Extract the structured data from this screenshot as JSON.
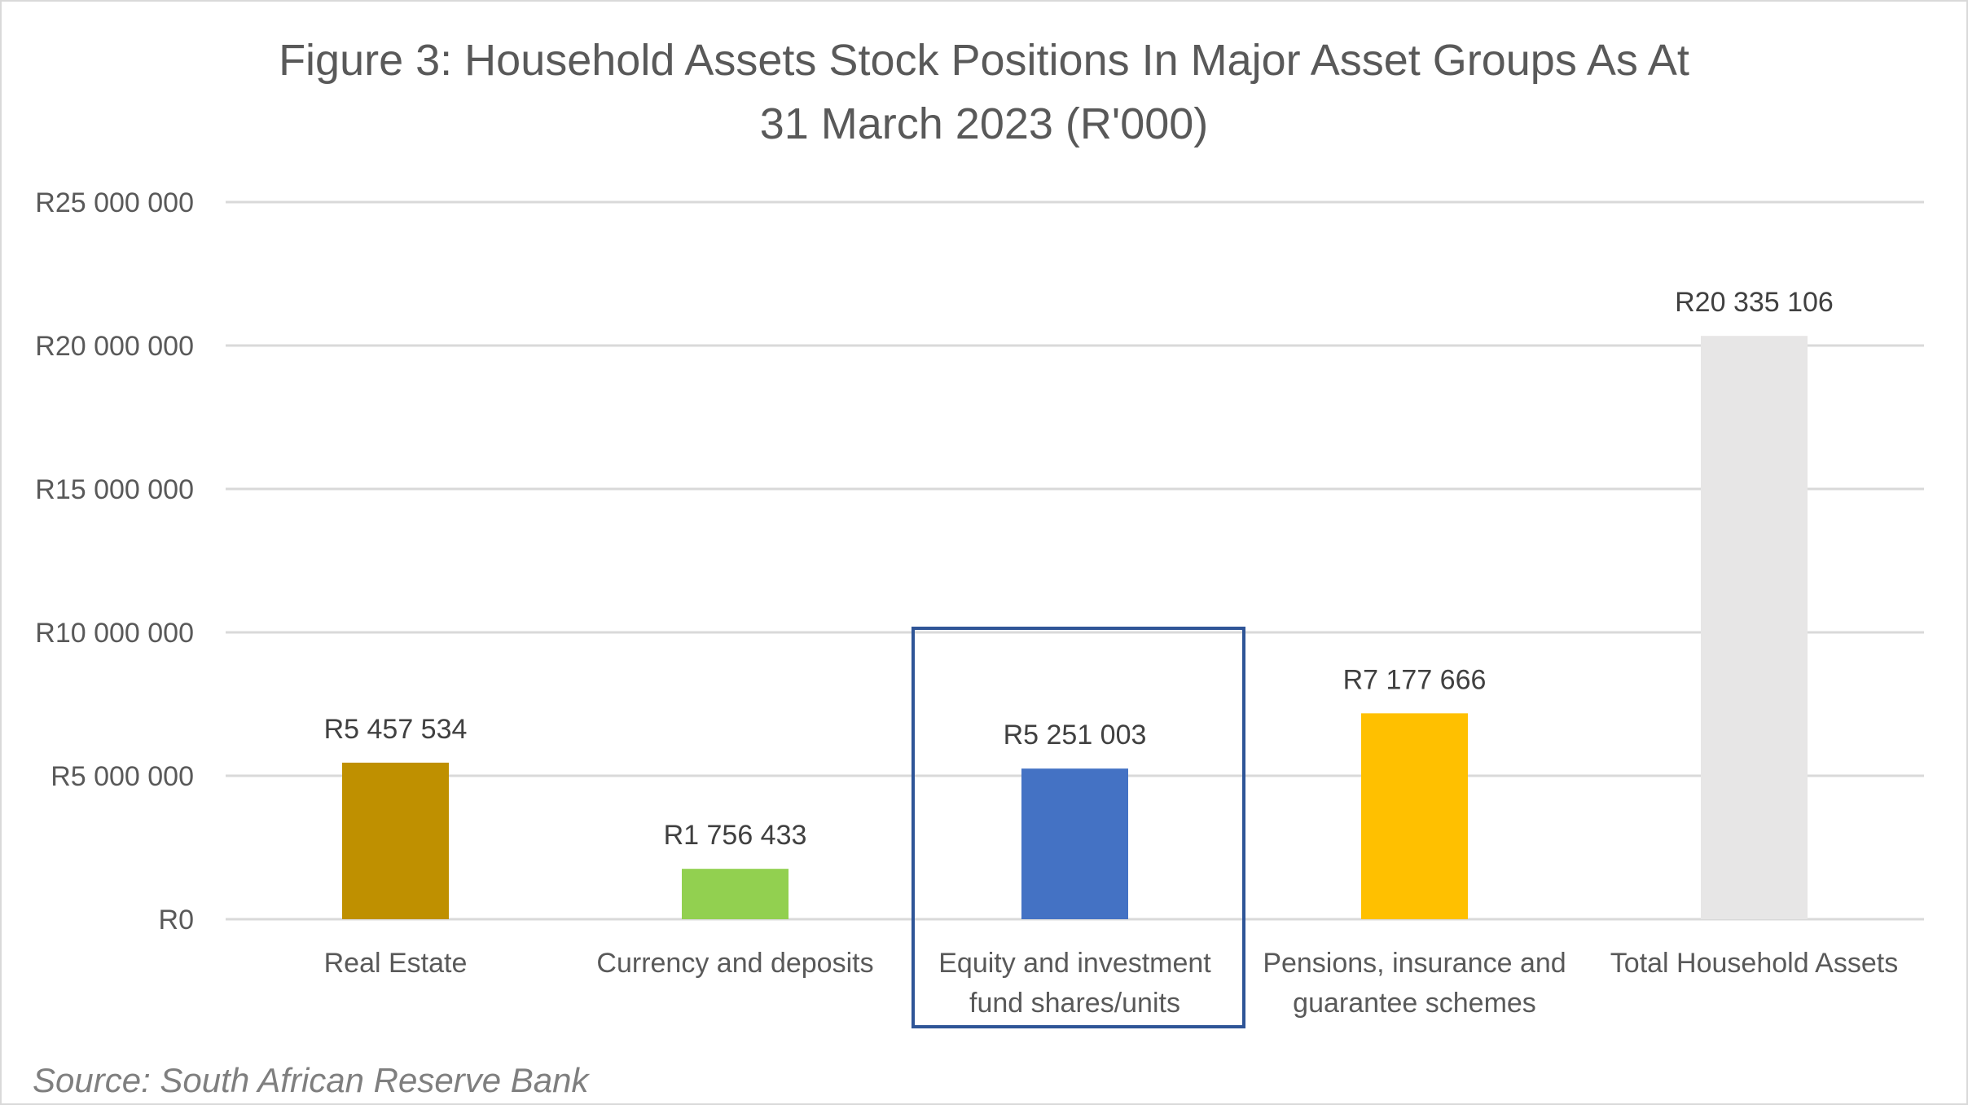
{
  "chart_data": {
    "type": "bar",
    "title_lines": [
      "Figure 3: Household Assets Stock Positions In Major Asset Groups As At",
      "31 March 2023 (R'000)"
    ],
    "categories": [
      [
        "Real Estate"
      ],
      [
        "Currency and deposits"
      ],
      [
        "Equity and investment",
        "fund shares/units"
      ],
      [
        "Pensions, insurance and",
        "guarantee schemes"
      ],
      [
        "Total Household Assets"
      ]
    ],
    "values": [
      5457534,
      1756433,
      5251003,
      7177666,
      20335106
    ],
    "data_labels": [
      "R5 457 534",
      "R1 756 433",
      "R5 251 003",
      "R7 177 666",
      "R20 335 106"
    ],
    "colors": [
      "#bf9000",
      "#92d050",
      "#4472c4",
      "#ffc000",
      "#e7e6e6"
    ],
    "yticks": [
      0,
      5000000,
      10000000,
      15000000,
      20000000,
      25000000
    ],
    "ytick_labels": [
      "R0",
      "R5 000 000",
      "R10 000 000",
      "R15 000 000",
      "R20 000 000",
      "R25 000 000"
    ],
    "ylim": [
      0,
      25000000
    ],
    "grid": true,
    "highlighted_category": 2,
    "highlight_color": "#2f5597",
    "xlabel": "",
    "ylabel": "",
    "source": "Source: South African Reserve Bank"
  }
}
